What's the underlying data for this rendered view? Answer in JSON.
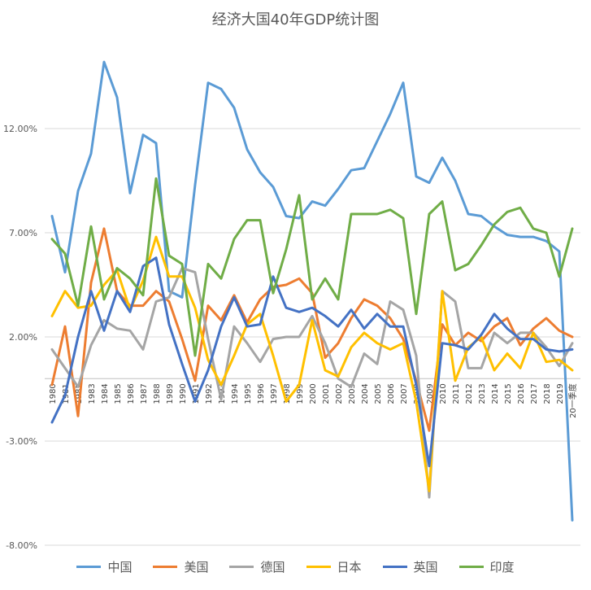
{
  "chart_data": {
    "type": "line",
    "title": "经济大国40年GDP统计图",
    "xlabel": "",
    "ylabel": "",
    "x": [
      "1980",
      "1981",
      "1982",
      "1983",
      "1984",
      "1985",
      "1986",
      "1987",
      "1988",
      "1989",
      "1990",
      "1991",
      "1992",
      "1993",
      "1994",
      "1995",
      "1996",
      "1997",
      "1998",
      "1999",
      "2000",
      "2001",
      "2002",
      "2003",
      "2004",
      "2005",
      "2006",
      "2007",
      "2008",
      "2009",
      "2010",
      "2011",
      "2012",
      "2013",
      "2014",
      "2015",
      "2016",
      "2017",
      "2018",
      "2019",
      "20一季度"
    ],
    "ylim": [
      -8,
      14.8
    ],
    "y_ticks": [
      12,
      7,
      2,
      -3,
      -8
    ],
    "y_tick_labels": [
      "12.00%",
      "7.00%",
      "2.00%",
      "-3.00%",
      "-8.00%"
    ],
    "grid": true,
    "legend_position": "bottom",
    "series": [
      {
        "name": "中国",
        "color": "#5B9BD5",
        "values": [
          7.8,
          5.1,
          9.0,
          10.8,
          15.2,
          13.5,
          8.9,
          11.7,
          11.3,
          4.2,
          3.9,
          9.3,
          14.2,
          13.9,
          13.0,
          11.0,
          9.9,
          9.2,
          7.8,
          7.7,
          8.5,
          8.3,
          9.1,
          10.0,
          10.1,
          11.4,
          12.7,
          14.2,
          9.7,
          9.4,
          10.6,
          9.5,
          7.9,
          7.8,
          7.3,
          6.9,
          6.8,
          6.8,
          6.6,
          6.1,
          -6.8
        ]
      },
      {
        "name": "美国",
        "color": "#ED7D31",
        "values": [
          -0.3,
          2.5,
          -1.8,
          4.6,
          7.2,
          4.2,
          3.5,
          3.5,
          4.2,
          3.7,
          1.9,
          -0.1,
          3.5,
          2.8,
          4.0,
          2.7,
          3.8,
          4.4,
          4.5,
          4.8,
          4.1,
          1.0,
          1.7,
          2.9,
          3.8,
          3.5,
          2.9,
          1.9,
          -0.1,
          -2.5,
          2.6,
          1.6,
          2.2,
          1.8,
          2.5,
          2.9,
          1.6,
          2.4,
          2.9,
          2.3,
          2.0
        ]
      },
      {
        "name": "德国",
        "color": "#A5A5A5",
        "values": [
          1.4,
          0.5,
          -0.4,
          1.6,
          2.8,
          2.4,
          2.3,
          1.4,
          3.7,
          3.9,
          5.3,
          5.1,
          1.9,
          -1.0,
          2.5,
          1.7,
          0.8,
          1.9,
          2.0,
          2.0,
          3.0,
          1.7,
          0.0,
          -0.4,
          1.2,
          0.7,
          3.7,
          3.3,
          1.1,
          -5.7,
          4.2,
          3.7,
          0.5,
          0.5,
          2.2,
          1.7,
          2.2,
          2.2,
          1.5,
          0.6,
          1.7
        ]
      },
      {
        "name": "日本",
        "color": "#FFC000",
        "values": [
          3.0,
          4.2,
          3.4,
          3.5,
          4.5,
          5.2,
          3.3,
          4.7,
          6.8,
          4.9,
          4.9,
          3.4,
          0.9,
          -0.3,
          1.1,
          2.6,
          3.1,
          1.1,
          -1.1,
          -0.3,
          2.8,
          0.4,
          0.1,
          1.5,
          2.2,
          1.7,
          1.4,
          1.7,
          -1.1,
          -5.4,
          4.2,
          -0.1,
          1.5,
          2.0,
          0.4,
          1.2,
          0.5,
          2.2,
          0.8,
          0.9,
          0.4
        ]
      },
      {
        "name": "英国",
        "color": "#4472C4",
        "values": [
          -2.1,
          -0.8,
          2.0,
          4.2,
          2.3,
          4.2,
          3.2,
          5.4,
          5.8,
          2.6,
          0.7,
          -1.1,
          0.4,
          2.5,
          3.9,
          2.5,
          2.6,
          4.9,
          3.4,
          3.2,
          3.4,
          3.0,
          2.5,
          3.3,
          2.4,
          3.1,
          2.5,
          2.5,
          -0.3,
          -4.2,
          1.7,
          1.6,
          1.4,
          2.1,
          3.1,
          2.4,
          1.9,
          1.9,
          1.4,
          1.3,
          1.4
        ]
      },
      {
        "name": "印度",
        "color": "#70AD47",
        "values": [
          6.7,
          6.0,
          3.5,
          7.3,
          3.8,
          5.3,
          4.8,
          4.0,
          9.6,
          5.9,
          5.5,
          1.1,
          5.5,
          4.8,
          6.7,
          7.6,
          7.6,
          4.1,
          6.2,
          8.8,
          3.8,
          4.8,
          3.8,
          7.9,
          7.9,
          7.9,
          8.1,
          7.7,
          3.1,
          7.9,
          8.5,
          5.2,
          5.5,
          6.4,
          7.4,
          8.0,
          8.2,
          7.2,
          7.0,
          4.9,
          7.2
        ]
      }
    ]
  }
}
